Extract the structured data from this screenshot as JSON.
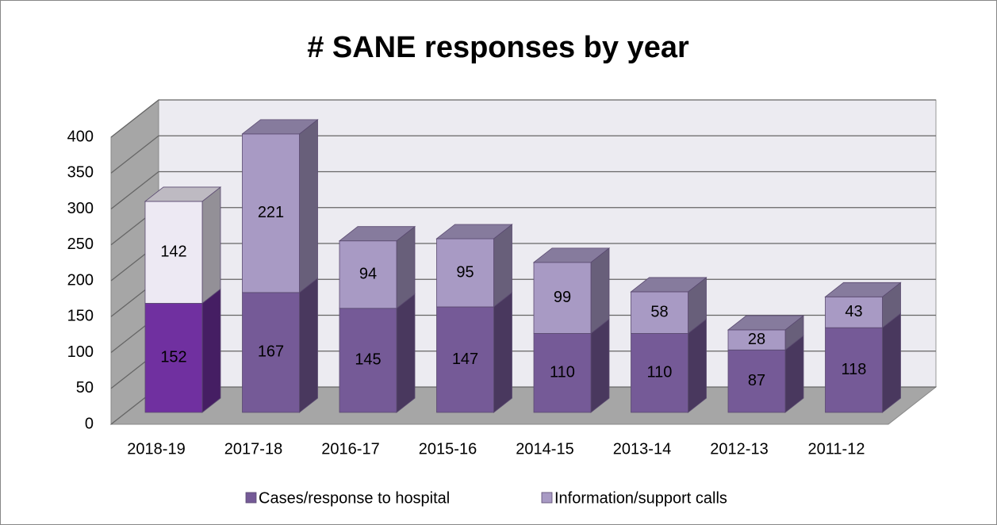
{
  "chart_data": {
    "type": "bar3d_stacked",
    "title": "# SANE responses by year",
    "categories": [
      "2018-19",
      "2017-18",
      "2016-17",
      "2015-16",
      "2014-15",
      "2013-14",
      "2012-13",
      "2011-12"
    ],
    "series": [
      {
        "name": "Cases/response to hospital",
        "color": "#755a97",
        "colors": [
          "#7030a0",
          "#755a97",
          "#755a97",
          "#755a97",
          "#755a97",
          "#755a97",
          "#755a97",
          "#755a97"
        ],
        "values": [
          152,
          167,
          145,
          147,
          110,
          110,
          87,
          118
        ]
      },
      {
        "name": "Information/support calls",
        "color": "#a89ac4",
        "colors": [
          "#ede9f3",
          "#a89ac4",
          "#a89ac4",
          "#a89ac4",
          "#a89ac4",
          "#a89ac4",
          "#a89ac4",
          "#a89ac4"
        ],
        "values": [
          142,
          221,
          94,
          95,
          99,
          58,
          28,
          43
        ]
      }
    ],
    "ylim": [
      0,
      400
    ],
    "yticks": [
      0,
      50,
      100,
      150,
      200,
      250,
      300,
      350,
      400
    ],
    "grid": true,
    "legend": "bottom"
  }
}
